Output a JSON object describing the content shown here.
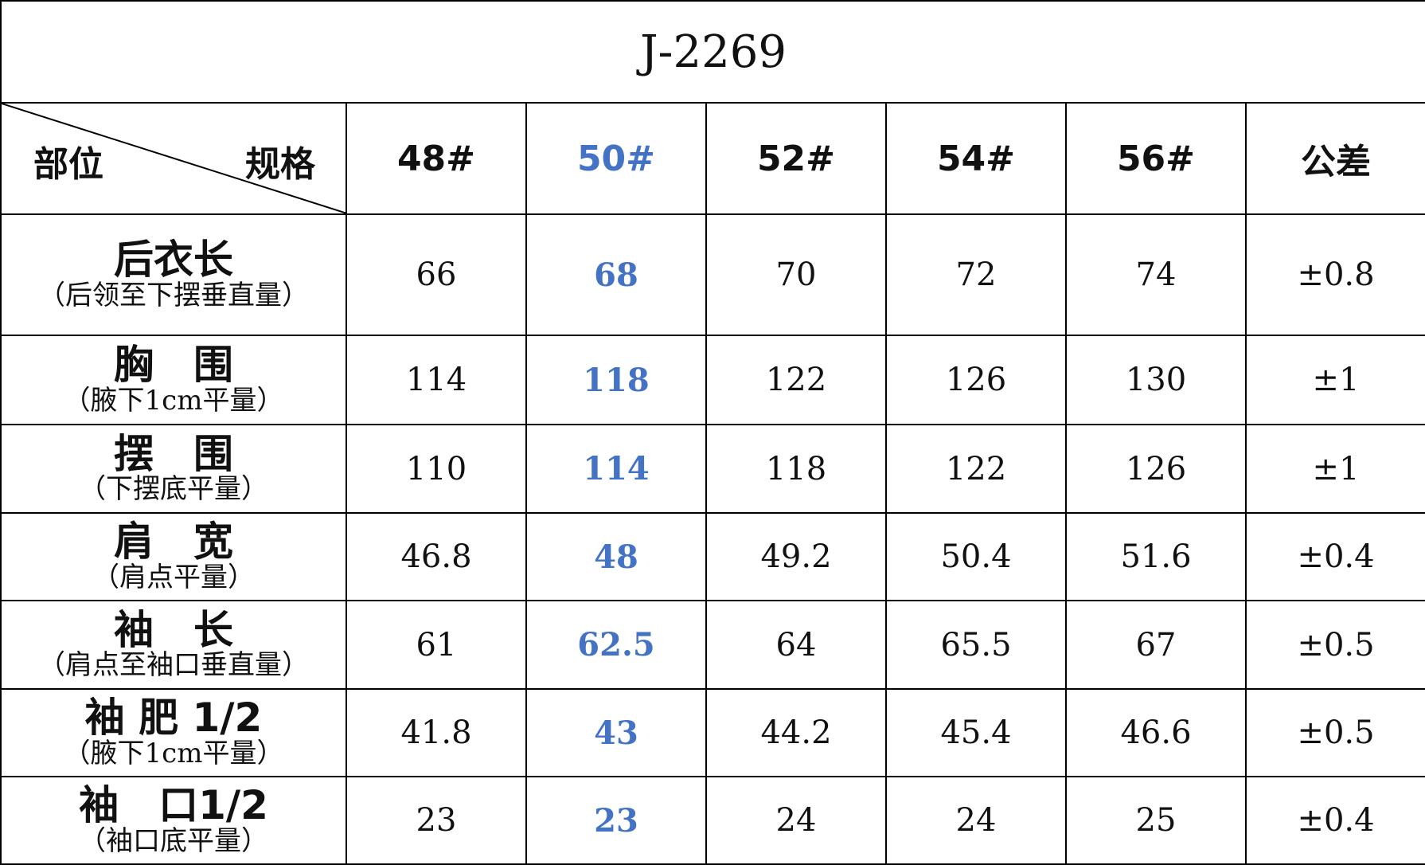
{
  "header": {
    "title": "J-2269"
  },
  "table": {
    "corner": {
      "left": "部位",
      "right": "规格"
    },
    "columns": [
      "48#",
      "50#",
      "52#",
      "54#",
      "56#",
      "公差"
    ],
    "highlight_column": 1,
    "highlight_color": "#4472c4",
    "rows": [
      {
        "name": "后衣长",
        "note": "（后领至下摆垂直量）",
        "values": [
          66,
          68,
          70,
          72,
          74
        ],
        "tolerance": "±0.8"
      },
      {
        "name": "胸　围",
        "note": "（腋下1cm平量）",
        "values": [
          114,
          118,
          122,
          126,
          130
        ],
        "tolerance": "±1"
      },
      {
        "name": "摆　围",
        "note": "（下摆底平量）",
        "values": [
          110,
          114,
          118,
          122,
          126
        ],
        "tolerance": "±1"
      },
      {
        "name": "肩　宽",
        "note": "（肩点平量）",
        "values": [
          46.8,
          48,
          49.2,
          50.4,
          51.6
        ],
        "tolerance": "±0.4"
      },
      {
        "name": "袖　长",
        "note": "（肩点至袖口垂直量）",
        "values": [
          61,
          62.5,
          64,
          65.5,
          67
        ],
        "tolerance": "±0.5"
      },
      {
        "name": "袖 肥 1/2",
        "note": "（腋下1cm平量）",
        "values": [
          41.8,
          43,
          44.2,
          45.4,
          46.6
        ],
        "tolerance": "±0.5"
      },
      {
        "name": "袖　口1/2",
        "note": "（袖口底平量）",
        "values": [
          23,
          23,
          24,
          24,
          25
        ],
        "tolerance": "±0.4"
      }
    ]
  }
}
